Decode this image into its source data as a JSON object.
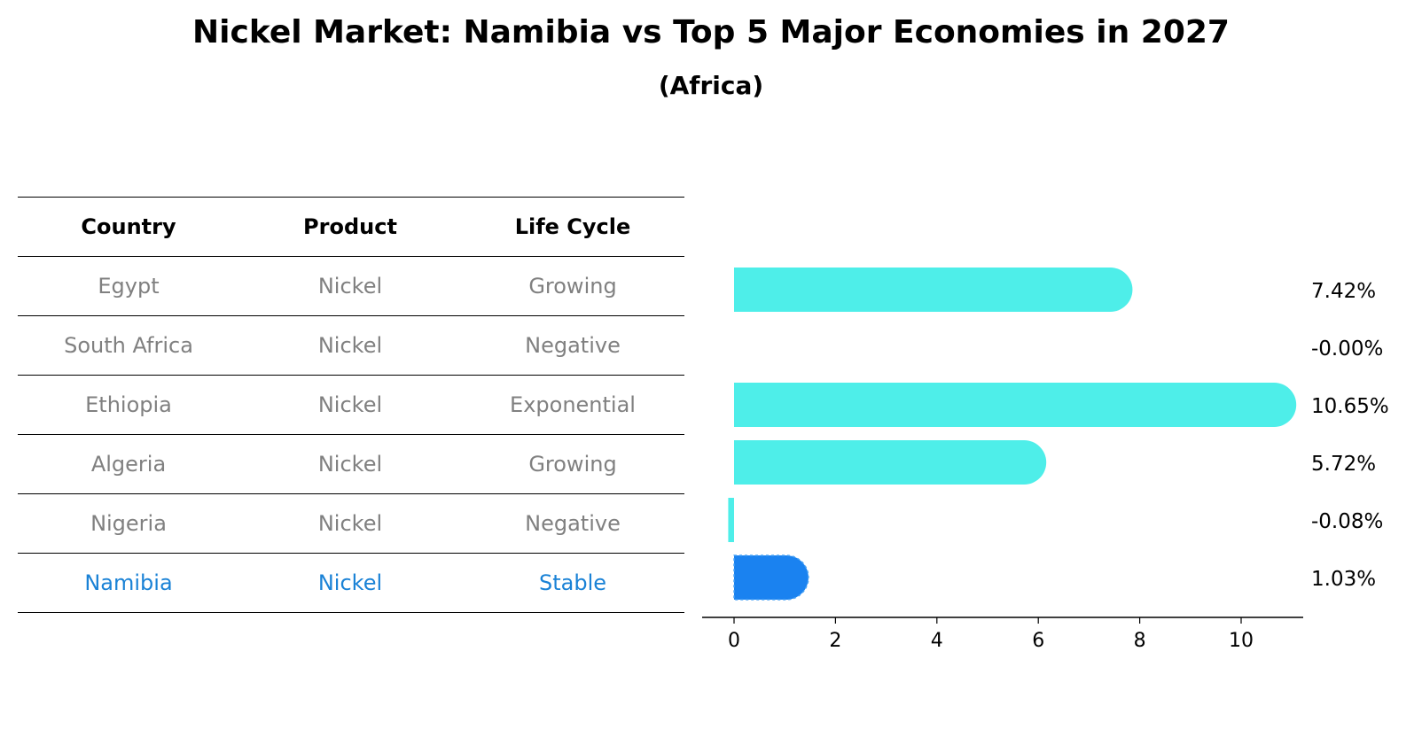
{
  "title": "Nickel Market: Namibia vs Top 5 Major Economies in 2027",
  "subtitle": "(Africa)",
  "table": {
    "headers": [
      "Country",
      "Product",
      "Life Cycle"
    ],
    "rows": [
      {
        "country": "Egypt",
        "product": "Nickel",
        "life_cycle": "Growing"
      },
      {
        "country": "South Africa",
        "product": "Nickel",
        "life_cycle": "Negative"
      },
      {
        "country": "Ethiopia",
        "product": "Nickel",
        "life_cycle": "Exponential"
      },
      {
        "country": "Algeria",
        "product": "Nickel",
        "life_cycle": "Growing"
      },
      {
        "country": "Nigeria",
        "product": "Nickel",
        "life_cycle": "Negative"
      },
      {
        "country": "Namibia",
        "product": "Nickel",
        "life_cycle": "Stable"
      }
    ],
    "highlight_row": "Namibia"
  },
  "chart_data": {
    "type": "bar",
    "orientation": "horizontal",
    "categories": [
      "Egypt",
      "South Africa",
      "Ethiopia",
      "Algeria",
      "Nigeria",
      "Namibia"
    ],
    "values": [
      7.42,
      -0.0,
      10.65,
      5.72,
      -0.08,
      1.03
    ],
    "value_labels": [
      "7.42%",
      "-0.00%",
      "10.65%",
      "5.72%",
      "-0.08%",
      "1.03%"
    ],
    "x_ticks": [
      0,
      2,
      4,
      6,
      8,
      10
    ],
    "xlim": [
      -0.65,
      11.2
    ],
    "colors": {
      "default": "#4eeee9",
      "highlight": "#1a82f0"
    },
    "highlight": "Namibia",
    "grid": false,
    "bar_style": "rounded-end"
  }
}
